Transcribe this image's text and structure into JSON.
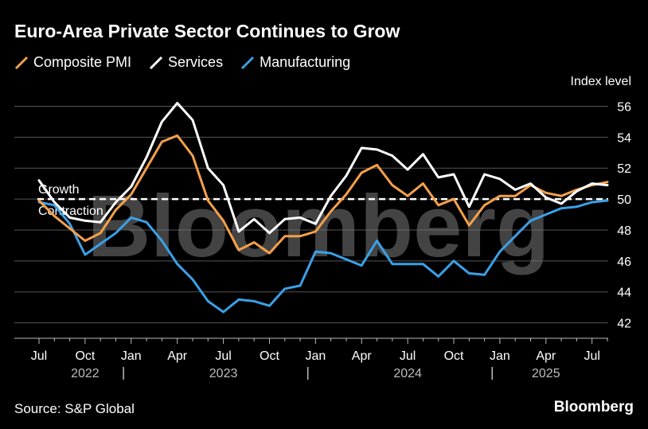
{
  "title": "Euro-Area Private Sector Continues to Grow",
  "legend": [
    {
      "label": "Composite PMI",
      "color": "#f5a04a"
    },
    {
      "label": "Services",
      "color": "#ffffff"
    },
    {
      "label": "Manufacturing",
      "color": "#3aa0e8"
    }
  ],
  "source": "Source: S&P Global",
  "brand": "Bloomberg",
  "watermark": "Bloomberg",
  "chart_data": {
    "type": "line",
    "ylabel": "Index level",
    "ylim": [
      41,
      57
    ],
    "yticks": [
      42,
      44,
      46,
      48,
      50,
      52,
      54,
      56
    ],
    "grid": true,
    "x": [
      "2022-07",
      "2022-08",
      "2022-09",
      "2022-10",
      "2022-11",
      "2022-12",
      "2023-01",
      "2023-02",
      "2023-03",
      "2023-04",
      "2023-05",
      "2023-06",
      "2023-07",
      "2023-08",
      "2023-09",
      "2023-10",
      "2023-11",
      "2023-12",
      "2024-01",
      "2024-02",
      "2024-03",
      "2024-04",
      "2024-05",
      "2024-06",
      "2024-07",
      "2024-08",
      "2024-09",
      "2024-10",
      "2024-11",
      "2024-12",
      "2025-01",
      "2025-02",
      "2025-03",
      "2025-04",
      "2025-05",
      "2025-06",
      "2025-07",
      "2025-08"
    ],
    "xtick_labels": [
      {
        "x": "2022-07",
        "label": "Jul"
      },
      {
        "x": "2022-10",
        "label": "Oct"
      },
      {
        "x": "2023-01",
        "label": "Jan"
      },
      {
        "x": "2023-04",
        "label": "Apr"
      },
      {
        "x": "2023-07",
        "label": "Jul"
      },
      {
        "x": "2023-10",
        "label": "Oct"
      },
      {
        "x": "2024-01",
        "label": "Jan"
      },
      {
        "x": "2024-04",
        "label": "Apr"
      },
      {
        "x": "2024-07",
        "label": "Jul"
      },
      {
        "x": "2024-10",
        "label": "Oct"
      },
      {
        "x": "2025-01",
        "label": "Jan"
      },
      {
        "x": "2025-04",
        "label": "Apr"
      },
      {
        "x": "2025-07",
        "label": "Jul"
      }
    ],
    "years": [
      {
        "x": "2022-10",
        "label": "2022"
      },
      {
        "x": "2023-07",
        "label": "2023"
      },
      {
        "x": "2024-07",
        "label": "2024"
      },
      {
        "x": "2025-04",
        "label": "2025"
      }
    ],
    "year_separators": [
      "2022-12",
      "2023-12",
      "2024-12"
    ],
    "reference_line": {
      "y": 50,
      "label_above": "Growth",
      "label_below": "Contraction"
    },
    "series": [
      {
        "name": "Composite PMI",
        "color": "#f5a04a",
        "values": [
          49.9,
          48.9,
          48.1,
          47.3,
          47.8,
          49.3,
          50.3,
          52.0,
          53.7,
          54.1,
          52.8,
          49.9,
          48.6,
          46.7,
          47.2,
          46.5,
          47.6,
          47.6,
          47.9,
          49.2,
          50.3,
          51.7,
          52.2,
          50.9,
          50.2,
          51.0,
          49.6,
          50.0,
          48.3,
          49.6,
          50.2,
          50.2,
          50.9,
          50.4,
          50.2,
          50.6,
          50.9,
          51.1
        ]
      },
      {
        "name": "Services",
        "color": "#ffffff",
        "values": [
          51.2,
          49.8,
          48.8,
          48.6,
          48.5,
          49.8,
          50.8,
          52.7,
          55.0,
          56.2,
          55.1,
          52.0,
          50.9,
          47.9,
          48.7,
          47.8,
          48.7,
          48.8,
          48.4,
          50.2,
          51.5,
          53.3,
          53.2,
          52.8,
          51.9,
          52.9,
          51.4,
          51.6,
          49.5,
          51.6,
          51.3,
          50.6,
          51.0,
          50.1,
          49.7,
          50.5,
          51.0,
          50.9
        ]
      },
      {
        "name": "Manufacturing",
        "color": "#3aa0e8",
        "values": [
          49.8,
          49.6,
          48.4,
          46.4,
          47.1,
          47.8,
          48.8,
          48.5,
          47.3,
          45.8,
          44.8,
          43.4,
          42.7,
          43.5,
          43.4,
          43.1,
          44.2,
          44.4,
          46.6,
          46.5,
          46.1,
          45.7,
          47.3,
          45.8,
          45.8,
          45.8,
          45.0,
          46.0,
          45.2,
          45.1,
          46.6,
          47.6,
          48.6,
          49.0,
          49.4,
          49.5,
          49.8,
          49.9
        ]
      }
    ]
  }
}
